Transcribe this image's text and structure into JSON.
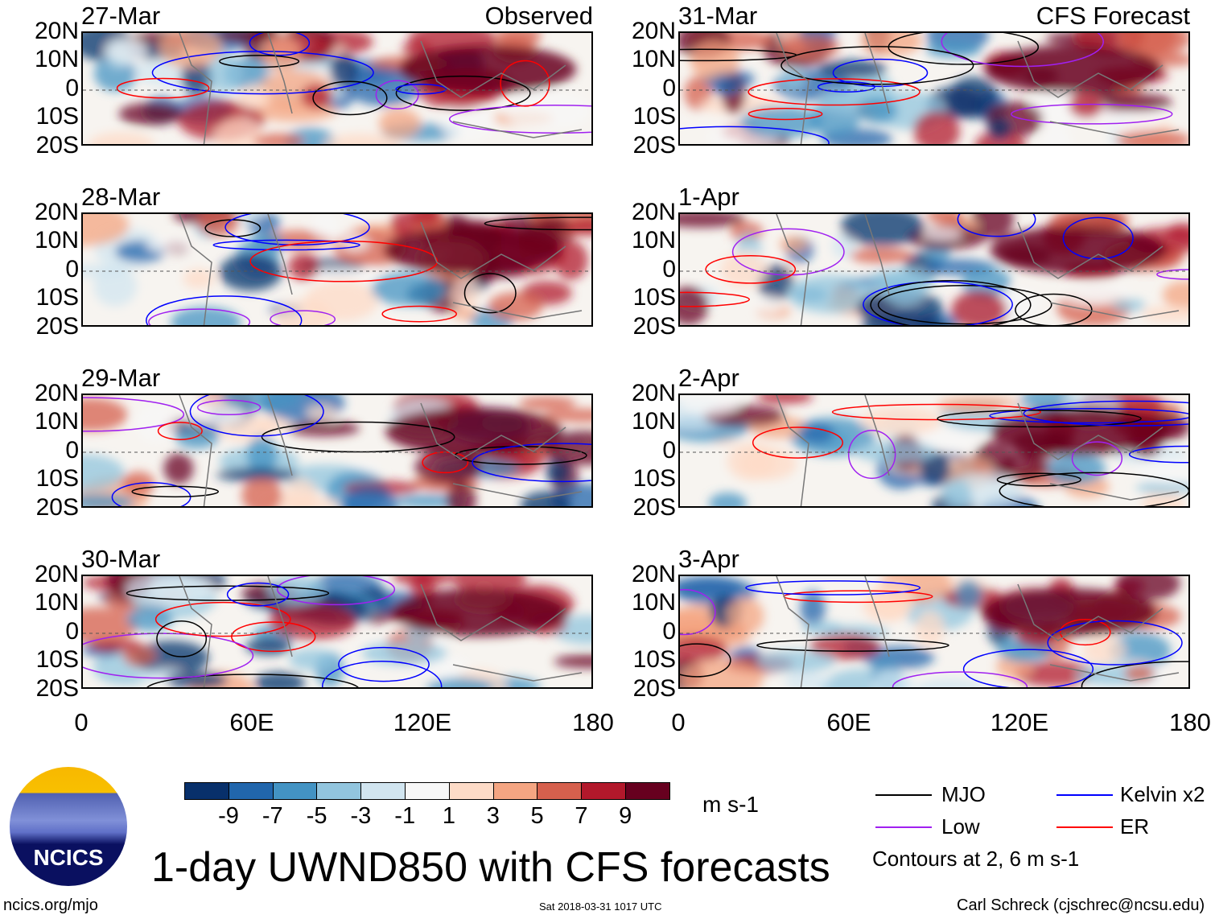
{
  "panels": [
    {
      "date": "27-Mar",
      "label": "Observed",
      "col": 0,
      "row": 0
    },
    {
      "date": "28-Mar",
      "label": "",
      "col": 0,
      "row": 1
    },
    {
      "date": "29-Mar",
      "label": "",
      "col": 0,
      "row": 2
    },
    {
      "date": "30-Mar",
      "label": "",
      "col": 0,
      "row": 3
    },
    {
      "date": "31-Mar",
      "label": "CFS Forecast",
      "col": 1,
      "row": 0
    },
    {
      "date": "1-Apr",
      "label": "",
      "col": 1,
      "row": 1
    },
    {
      "date": "2-Apr",
      "label": "",
      "col": 1,
      "row": 2
    },
    {
      "date": "3-Apr",
      "label": "",
      "col": 1,
      "row": 3
    }
  ],
  "lat_ticks": [
    "20N",
    "10N",
    "0",
    "10S",
    "20S"
  ],
  "lon_ticks": [
    "0",
    "60E",
    "120E",
    "180"
  ],
  "colorbar": {
    "labels": [
      "-9",
      "-7",
      "-5",
      "-3",
      "-1",
      "1",
      "3",
      "5",
      "7",
      "9"
    ],
    "colors": [
      "#08306b",
      "#2166ac",
      "#4393c3",
      "#92c5de",
      "#d1e5f0",
      "#f7f7f7",
      "#fddbc7",
      "#f4a582",
      "#d6604d",
      "#b2182b",
      "#67001f"
    ],
    "units": "m s-1"
  },
  "legend": {
    "items": [
      {
        "label": "MJO",
        "color": "#000000"
      },
      {
        "label": "Kelvin x2",
        "color": "#0000ff"
      },
      {
        "label": "Low",
        "color": "#a020f0"
      },
      {
        "label": "ER",
        "color": "#ff0000"
      }
    ],
    "note": "Contours at 2, 6 m s-1"
  },
  "title": "1-day UWND850 with CFS forecasts",
  "logo": {
    "text": "NCICS"
  },
  "footer": {
    "url": "ncics.org/mjo",
    "timestamp": "Sat 2018-03-31 1017 UTC",
    "credit": "Carl Schreck (cjschrec@ncsu.edu)"
  }
}
